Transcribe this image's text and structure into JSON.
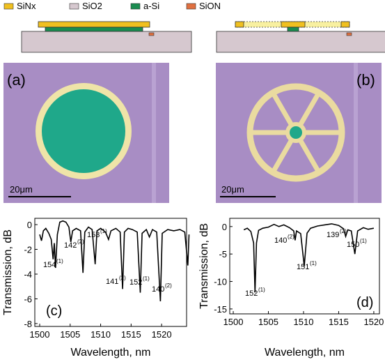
{
  "legend": [
    "SiNx",
    "SiO2",
    "a-Si",
    "SiON"
  ],
  "panels": [
    "(a)",
    "(b)"
  ],
  "scale_bars": [
    "20μm",
    "20μm"
  ],
  "chart_data": [
    {
      "type": "line",
      "panel": "(c)",
      "xlabel": "Wavelength, nm",
      "ylabel": "Transmission, dB",
      "xlim": [
        1499.2,
        1524.1
      ],
      "xticks": [
        1500,
        1505,
        1510,
        1515,
        1520
      ],
      "ylim": [
        -8.23,
        0.51
      ],
      "yticks": [
        -8,
        -6,
        -4,
        -2,
        0
      ],
      "series": [
        {
          "color": "#000000",
          "x": [
            1500,
            1500.3,
            1500.6,
            1501,
            1501.5,
            1501.9,
            1502.2,
            1502.4,
            1502.6,
            1502.9,
            1503.3,
            1503.8,
            1504.3,
            1504.8,
            1505.1,
            1505.4,
            1506,
            1506.7,
            1507.1,
            1507.4,
            1508,
            1508.6,
            1509.1,
            1509.4,
            1510,
            1510.8,
            1511.3,
            1511.7,
            1512.5,
            1513.2,
            1513.6,
            1513.9,
            1514.5,
            1515.2,
            1516,
            1516.5,
            1516.8,
            1517.5,
            1518,
            1518.5,
            1519.2,
            1519.8,
            1520.1,
            1521,
            1522,
            1523,
            1523.8,
            1524.3,
            1524.5
          ],
          "values": [
            -0.8,
            -1.3,
            -0.5,
            -0.3,
            -0.7,
            -1.2,
            -2.8,
            -1.5,
            -3.5,
            -0.8,
            0.2,
            0.3,
            0.2,
            -0.2,
            -1.4,
            -0.5,
            -0.3,
            -0.5,
            -3.9,
            -0.6,
            -0.2,
            -0.4,
            -3.2,
            -0.5,
            -0.3,
            -0.6,
            -1.2,
            -0.5,
            -0.3,
            -0.6,
            -5.2,
            -0.6,
            -0.3,
            -0.4,
            -0.6,
            -5.5,
            -0.7,
            -0.4,
            -1.0,
            -0.4,
            -0.6,
            -6.2,
            -0.7,
            -0.4,
            -0.5,
            -0.4,
            -0.6,
            -3.3,
            -0.8
          ]
        }
      ],
      "annotations": [
        {
          "text": "154",
          "sup": "(1)"
        },
        {
          "text": "142",
          "sup": "(2)"
        },
        {
          "text": "153",
          "sup": "(1)"
        },
        {
          "text": "141",
          "sup": "(2)"
        },
        {
          "text": "152",
          "sup": "(1)"
        },
        {
          "text": "140",
          "sup": "(2)"
        }
      ]
    },
    {
      "type": "line",
      "panel": "(d)",
      "xlabel": "Wavelength, nm",
      "ylabel": "Transmission, dB",
      "xlim": [
        1499.5,
        1520.8
      ],
      "xticks": [
        1500,
        1505,
        1510,
        1515,
        1520
      ],
      "ylim": [
        -15.9,
        1.5
      ],
      "yticks": [
        -15,
        -10,
        -5,
        0
      ],
      "series": [
        {
          "color": "#000000",
          "x": [
            1501.5,
            1502,
            1502.5,
            1502.9,
            1503.1,
            1503.3,
            1503.6,
            1504.2,
            1505,
            1505.8,
            1506.5,
            1507.2,
            1508,
            1508.6,
            1508.8,
            1509,
            1509.6,
            1510.1,
            1510.5,
            1511,
            1512,
            1513,
            1514,
            1515,
            1515.7,
            1516,
            1516.3,
            1516.8,
            1517.3,
            1517.7,
            1518.5,
            1519.2,
            1520
          ],
          "values": [
            -0.6,
            -0.3,
            -0.9,
            -3,
            -12,
            -3,
            -0.7,
            -0.3,
            -0.1,
            0.4,
            0,
            0.3,
            -0.2,
            -0.8,
            -2.5,
            -0.8,
            -1.3,
            -7.2,
            -1.2,
            -0.3,
            0.1,
            0.3,
            0.5,
            0.2,
            -0.4,
            -1.8,
            -0.6,
            -0.8,
            -5,
            -0.8,
            -0.2,
            -0.5,
            -0.3
          ]
        }
      ],
      "annotations": [
        {
          "text": "152",
          "sup": "(1)"
        },
        {
          "text": "140",
          "sup": "(2)"
        },
        {
          "text": "151",
          "sup": "(1)"
        },
        {
          "text": "139",
          "sup": "(2)"
        },
        {
          "text": "150",
          "sup": "(1)"
        }
      ]
    }
  ]
}
